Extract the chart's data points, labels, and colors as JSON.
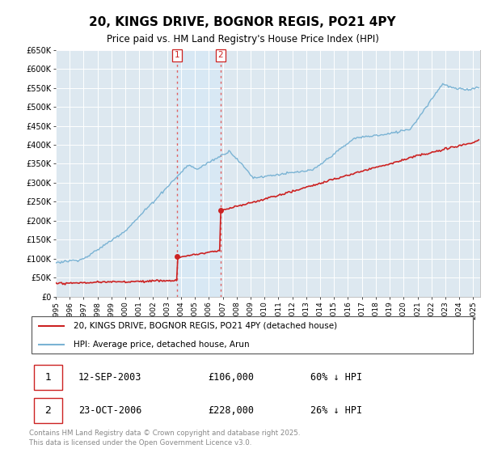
{
  "title": "20, KINGS DRIVE, BOGNOR REGIS, PO21 4PY",
  "subtitle": "Price paid vs. HM Land Registry's House Price Index (HPI)",
  "ylabel_ticks": [
    "£0",
    "£50K",
    "£100K",
    "£150K",
    "£200K",
    "£250K",
    "£300K",
    "£350K",
    "£400K",
    "£450K",
    "£500K",
    "£550K",
    "£600K",
    "£650K"
  ],
  "ytick_values": [
    0,
    50000,
    100000,
    150000,
    200000,
    250000,
    300000,
    350000,
    400000,
    450000,
    500000,
    550000,
    600000,
    650000
  ],
  "ylim": [
    0,
    650000
  ],
  "hpi_color": "#7ab3d4",
  "price_color": "#cc2222",
  "background_color": "#dde8f0",
  "vline_color": "#e06060",
  "span_color": "#d8e8f4",
  "transaction1": {
    "date": "12-SEP-2003",
    "price": 106000,
    "pct": "60% ↓ HPI",
    "label": "1",
    "x_year": 2003.7
  },
  "transaction2": {
    "date": "23-OCT-2006",
    "price": 228000,
    "pct": "26% ↓ HPI",
    "label": "2",
    "x_year": 2006.83
  },
  "legend_entry1": "20, KINGS DRIVE, BOGNOR REGIS, PO21 4PY (detached house)",
  "legend_entry2": "HPI: Average price, detached house, Arun",
  "footer": "Contains HM Land Registry data © Crown copyright and database right 2025.\nThis data is licensed under the Open Government Licence v3.0.",
  "xmin": 1995.0,
  "xmax": 2025.5,
  "xtick_years": [
    1995,
    1996,
    1997,
    1998,
    1999,
    2000,
    2001,
    2002,
    2003,
    2004,
    2005,
    2006,
    2007,
    2008,
    2009,
    2010,
    2011,
    2012,
    2013,
    2014,
    2015,
    2016,
    2017,
    2018,
    2019,
    2020,
    2021,
    2022,
    2023,
    2024,
    2025
  ]
}
